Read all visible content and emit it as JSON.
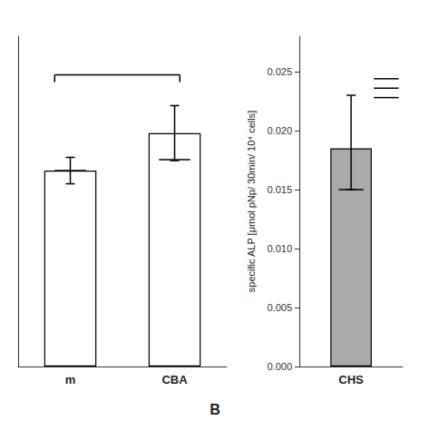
{
  "chart_data": [
    {
      "type": "bar",
      "categories": [
        "m",
        "CBA"
      ],
      "values": [
        0.178,
        0.212
      ],
      "errors_low": [
        0.012,
        0.025
      ],
      "errors_high": [
        0.012,
        0.025
      ],
      "mean_lines": [
        0.178,
        0.188
      ],
      "significance_line": 0.265,
      "ylim": [
        0,
        0.3
      ],
      "yticks": [],
      "tick_labels": "x",
      "colors": [
        "white",
        "white"
      ],
      "grid": false
    },
    {
      "type": "bar",
      "title": "B",
      "categories": [
        "CHS"
      ],
      "values": [
        0.0185
      ],
      "errors_low": [
        0.0035
      ],
      "errors_high": [
        0.0045
      ],
      "mean_lines": [
        0.015
      ],
      "significance_lines": [
        0.0228,
        0.0236,
        0.0244
      ],
      "ylabel": "specific ALP [μmol pNp/ 30min/ 10⁴ cells]",
      "ylim": [
        0,
        0.028
      ],
      "yticks": [
        {
          "value": 0.0,
          "label": "0.000"
        },
        {
          "value": 0.005,
          "label": "0.005"
        },
        {
          "value": 0.01,
          "label": "0.010"
        },
        {
          "value": 0.015,
          "label": "0.015"
        },
        {
          "value": 0.02,
          "label": "0.020"
        },
        {
          "value": 0.025,
          "label": "0.025"
        }
      ],
      "color": "#aaaaaa",
      "grid": false
    }
  ]
}
